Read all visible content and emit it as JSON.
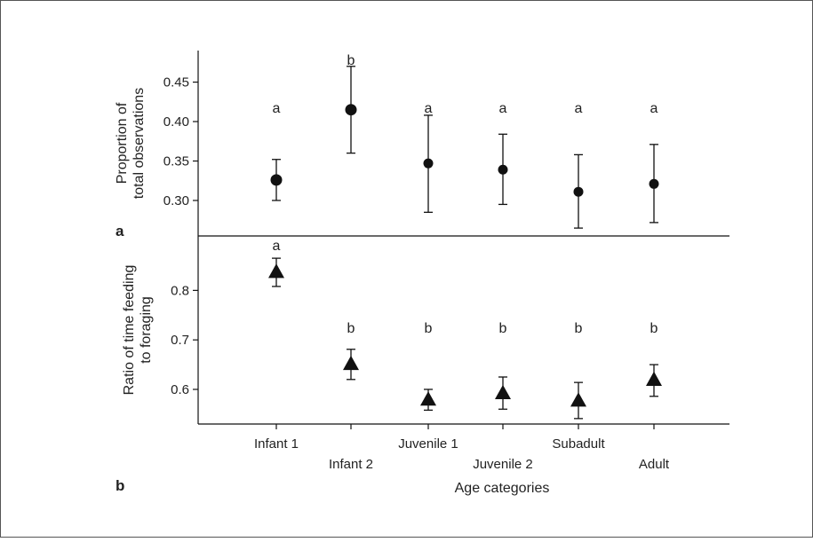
{
  "chart_data": [
    {
      "panel_label": "a",
      "type": "scatter",
      "marker": "circle",
      "ylabel": [
        "Proportion of",
        "total observations"
      ],
      "yticks": [
        "0.30",
        "0.35",
        "0.40",
        "0.45"
      ],
      "ylim": [
        0.255,
        0.49
      ],
      "categories": [
        "Infant 1",
        "Infant 2",
        "Juvenile 1",
        "Juvenile 2",
        "Subadult",
        "Adult"
      ],
      "values": [
        0.326,
        0.415,
        0.347,
        0.339,
        0.311,
        0.321
      ],
      "upper": [
        0.352,
        0.47,
        0.408,
        0.384,
        0.358,
        0.371
      ],
      "lower": [
        0.3,
        0.36,
        0.285,
        0.295,
        0.265,
        0.272
      ],
      "letters": [
        "a",
        "b",
        "a",
        "a",
        "a",
        "a"
      ]
    },
    {
      "panel_label": "b",
      "type": "scatter",
      "marker": "triangle",
      "ylabel": [
        "Ratio of time feeding",
        "to foraging"
      ],
      "yticks": [
        "0.6",
        "0.7",
        "0.8"
      ],
      "ylim": [
        0.53,
        0.91
      ],
      "categories": [
        "Infant 1",
        "Infant 2",
        "Juvenile 1",
        "Juvenile 2",
        "Subadult",
        "Adult"
      ],
      "values": [
        0.838,
        0.652,
        0.58,
        0.593,
        0.578,
        0.62
      ],
      "upper": [
        0.865,
        0.681,
        0.6,
        0.625,
        0.614,
        0.65
      ],
      "lower": [
        0.808,
        0.62,
        0.558,
        0.56,
        0.541,
        0.586
      ],
      "letters": [
        "a",
        "b",
        "b",
        "b",
        "b",
        "b"
      ]
    }
  ],
  "xlabel": "Age categories"
}
